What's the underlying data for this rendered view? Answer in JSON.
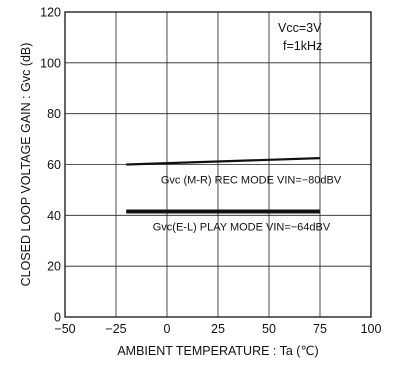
{
  "chart_data": {
    "type": "line",
    "title": "",
    "xlabel": "AMBIENT TEMPERATURE : Ta (℃)",
    "ylabel": "CLOSED LOOP VOLTAGE GAIN : Gvc (dB)",
    "xlim": [
      -50,
      100
    ],
    "ylim": [
      0,
      120
    ],
    "xticks": [
      -50,
      -25,
      0,
      25,
      50,
      75,
      100
    ],
    "yticks": [
      0,
      20,
      40,
      60,
      80,
      100,
      120
    ],
    "xtick_labels": [
      "−50",
      "−25",
      "0",
      "25",
      "50",
      "75",
      "100"
    ],
    "ytick_labels": [
      "0",
      "20",
      "40",
      "60",
      "80",
      "100",
      "120"
    ],
    "grid": true,
    "conditions": [
      "Vcc=3V",
      "f=1kHz"
    ],
    "series": [
      {
        "x": [
          -20,
          75
        ],
        "y": [
          60,
          62.5
        ],
        "color": "#111111"
      },
      {
        "x": [
          -20,
          75
        ],
        "y": [
          41.5,
          41.5
        ],
        "color": "#111111"
      }
    ],
    "annotations": [
      {
        "text": "Gvc (M-R) REC MODE   VIN=−80dBV",
        "x": -3,
        "y": 52.5
      },
      {
        "text": "Gvc(E-L) PLAY MODE   VIN=−64dBV",
        "x": -7,
        "y": 34
      }
    ]
  }
}
